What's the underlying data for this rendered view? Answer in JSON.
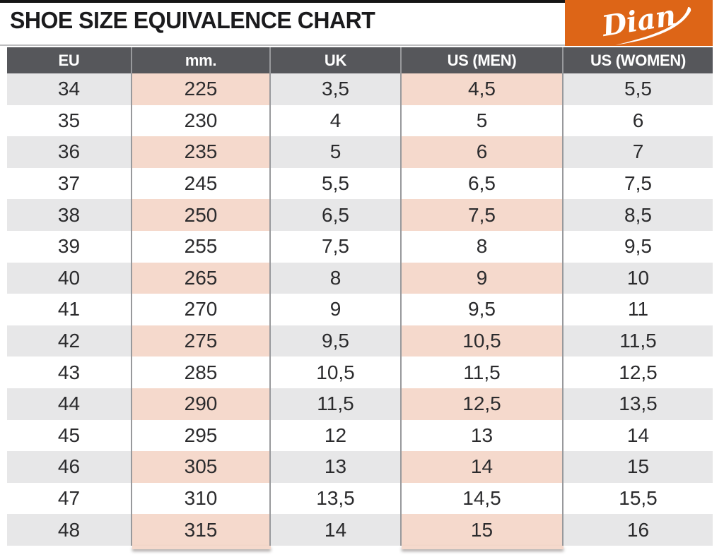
{
  "page": {
    "title": "SHOE SIZE EQUIVALENCE CHART"
  },
  "logo": {
    "text": "Dian"
  },
  "colors": {
    "brand_orange": "#dd6517",
    "header_gray": "#56575b",
    "row_gray": "#e7e7e8",
    "highlight_pink": "#f5d9cc",
    "divider_gray": "#98999c",
    "text_dark": "#2b2b2d"
  },
  "table": {
    "columns": [
      "EU",
      "mm.",
      "UK",
      "US (MEN)",
      "US (WOMEN)"
    ],
    "highlighted_columns": [
      "mm.",
      "US (MEN)"
    ],
    "highlight_column_indexes": [
      1,
      3
    ],
    "rows": [
      [
        "34",
        "225",
        "3,5",
        "4,5",
        "5,5"
      ],
      [
        "35",
        "230",
        "4",
        "5",
        "6"
      ],
      [
        "36",
        "235",
        "5",
        "6",
        "7"
      ],
      [
        "37",
        "245",
        "5,5",
        "6,5",
        "7,5"
      ],
      [
        "38",
        "250",
        "6,5",
        "7,5",
        "8,5"
      ],
      [
        "39",
        "255",
        "7,5",
        "8",
        "9,5"
      ],
      [
        "40",
        "265",
        "8",
        "9",
        "10"
      ],
      [
        "41",
        "270",
        "9",
        "9,5",
        "11"
      ],
      [
        "42",
        "275",
        "9,5",
        "10,5",
        "11,5"
      ],
      [
        "43",
        "285",
        "10,5",
        "11,5",
        "12,5"
      ],
      [
        "44",
        "290",
        "11,5",
        "12,5",
        "13,5"
      ],
      [
        "45",
        "295",
        "12",
        "13",
        "14"
      ],
      [
        "46",
        "305",
        "13",
        "14",
        "15"
      ],
      [
        "47",
        "310",
        "13,5",
        "14,5",
        "15,5"
      ],
      [
        "48",
        "315",
        "14",
        "15",
        "16"
      ]
    ]
  },
  "chart_data": {
    "type": "table",
    "title": "SHOE SIZE EQUIVALENCE CHART",
    "columns": [
      "EU",
      "mm.",
      "UK",
      "US (MEN)",
      "US (WOMEN)"
    ],
    "rows": [
      [
        34,
        225,
        3.5,
        4.5,
        5.5
      ],
      [
        35,
        230,
        4,
        5,
        6
      ],
      [
        36,
        235,
        5,
        6,
        7
      ],
      [
        37,
        245,
        5.5,
        6.5,
        7.5
      ],
      [
        38,
        250,
        6.5,
        7.5,
        8.5
      ],
      [
        39,
        255,
        7.5,
        8,
        9.5
      ],
      [
        40,
        265,
        8,
        9,
        10
      ],
      [
        41,
        270,
        9,
        9.5,
        11
      ],
      [
        42,
        275,
        9.5,
        10.5,
        11.5
      ],
      [
        43,
        285,
        10.5,
        11.5,
        12.5
      ],
      [
        44,
        290,
        11.5,
        12.5,
        13.5
      ],
      [
        45,
        295,
        12,
        13,
        14
      ],
      [
        46,
        305,
        13,
        14,
        15
      ],
      [
        47,
        310,
        13.5,
        14.5,
        15.5
      ],
      [
        48,
        315,
        14,
        15,
        16
      ]
    ],
    "layout": {
      "zebra_striping": true,
      "shaded_row_values_eu": [
        34,
        36,
        38,
        40,
        42,
        44,
        46,
        48
      ],
      "highlighted_columns": [
        "mm.",
        "US (MEN)"
      ],
      "decimal_separator": "comma"
    }
  }
}
